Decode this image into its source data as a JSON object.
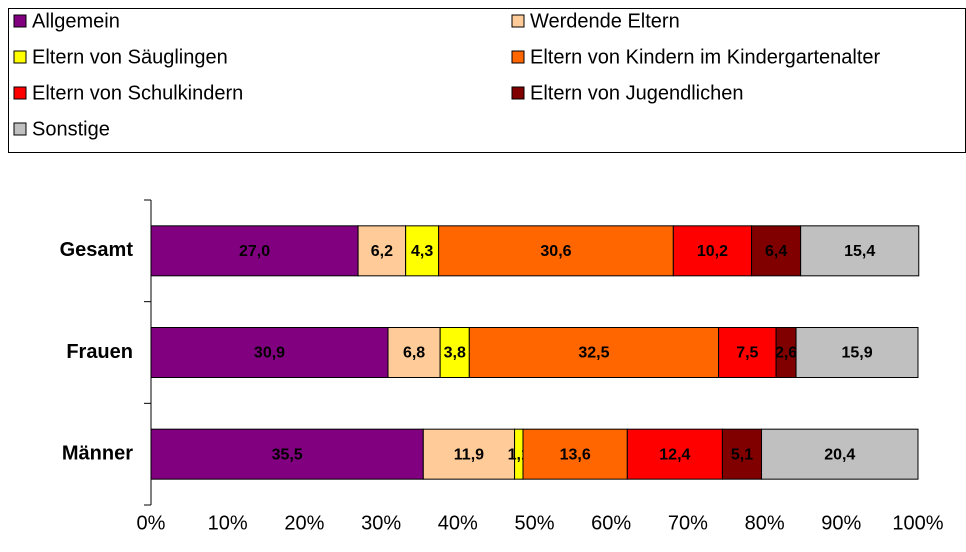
{
  "chart_data": {
    "type": "stacked_bar_horizontal",
    "categories": [
      "Gesamt",
      "Frauen",
      "Männer"
    ],
    "series": [
      {
        "name": "Allgemein",
        "color": "#800080",
        "values": [
          27.0,
          30.9,
          35.5
        ],
        "value_labels": [
          "27,0",
          "30,9",
          "35,5"
        ]
      },
      {
        "name": "Werdende Eltern",
        "color": "#ffcc99",
        "values": [
          6.2,
          6.8,
          11.9
        ],
        "value_labels": [
          "6,2",
          "6,8",
          "11,9"
        ]
      },
      {
        "name": "Eltern von Säuglingen",
        "color": "#ffff00",
        "values": [
          4.3,
          3.8,
          1.1
        ],
        "value_labels": [
          "4,3",
          "3,8",
          "1,1"
        ]
      },
      {
        "name": "Eltern von Kindern im Kindergartenalter",
        "color": "#ff6600",
        "values": [
          30.6,
          32.5,
          13.6
        ],
        "value_labels": [
          "30,6",
          "32,5",
          "13,6"
        ]
      },
      {
        "name": "Eltern von Schulkindern",
        "color": "#ff0000",
        "values": [
          10.2,
          7.5,
          12.4
        ],
        "value_labels": [
          "10,2",
          "7,5",
          "12,4"
        ]
      },
      {
        "name": "Eltern von Jugendlichen",
        "color": "#800000",
        "values": [
          6.4,
          2.6,
          5.1
        ],
        "value_labels": [
          "6,4",
          "2,6",
          "5,1"
        ]
      },
      {
        "name": "Sonstige",
        "color": "#c0c0c0",
        "values": [
          15.4,
          15.9,
          20.4
        ],
        "value_labels": [
          "15,4",
          "15,9",
          "20,4"
        ]
      }
    ],
    "xlim": [
      0,
      100
    ],
    "xticks": [
      {
        "value": 0,
        "label": "0%"
      },
      {
        "value": 10,
        "label": "10%"
      },
      {
        "value": 20,
        "label": "20%"
      },
      {
        "value": 30,
        "label": "30%"
      },
      {
        "value": 40,
        "label": "40%"
      },
      {
        "value": 50,
        "label": "50%"
      },
      {
        "value": 60,
        "label": "60%"
      },
      {
        "value": 70,
        "label": "70%"
      },
      {
        "value": 80,
        "label": "80%"
      },
      {
        "value": 90,
        "label": "90%"
      },
      {
        "value": 100,
        "label": "100%"
      }
    ],
    "legend": "top"
  }
}
